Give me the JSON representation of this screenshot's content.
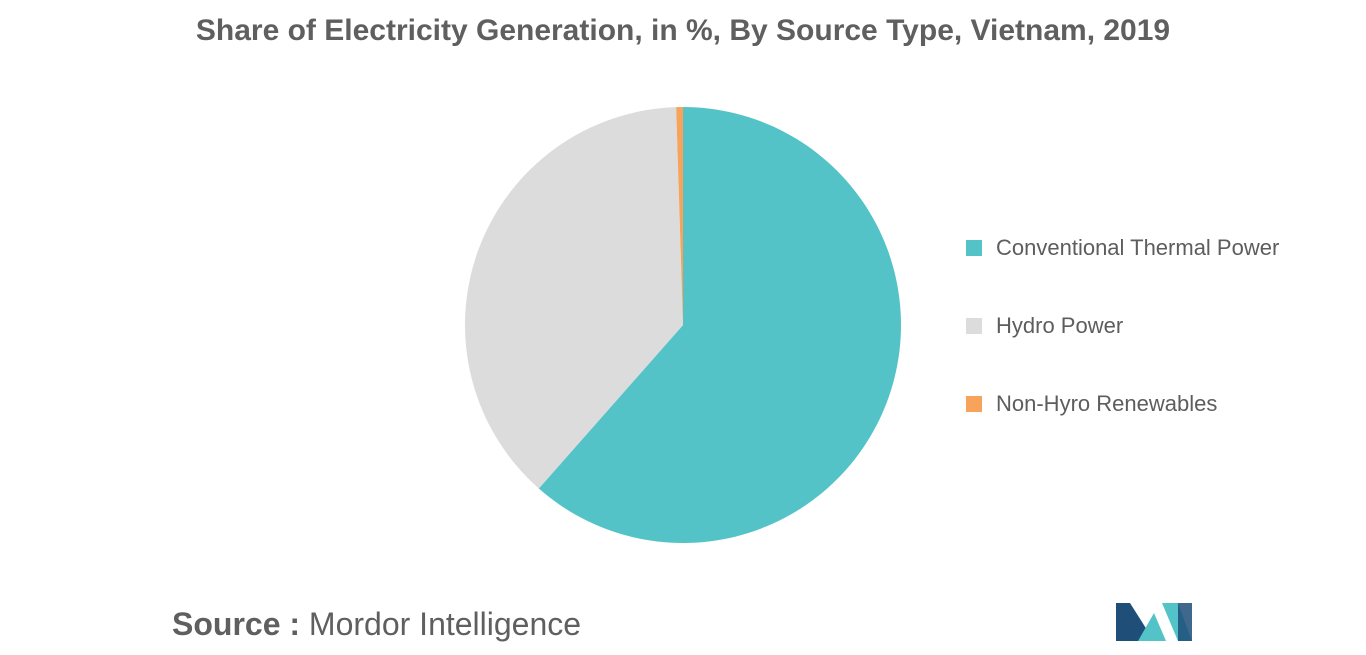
{
  "page": {
    "title": "Share of Electricity Generation, in %, By Source Type, Vietnam, 2019",
    "source_prefix": "Source :",
    "source_name": " Mordor Intelligence"
  },
  "chart_data": {
    "type": "pie",
    "title": "Share of Electricity Generation, in %, By Source Type, Vietnam, 2019",
    "legend_position": "right",
    "slices": [
      {
        "label": "Conventional Thermal Power",
        "value": 61.5,
        "color": "#53c3c8"
      },
      {
        "label": "Hydro Power",
        "value": 38.0,
        "color": "#dcdcdc"
      },
      {
        "label": "Non-Hyro Renewables",
        "value": 0.5,
        "color": "#f7a35c"
      }
    ]
  },
  "logo": {
    "colors": [
      "#1f4e79",
      "#53c3c8"
    ]
  }
}
